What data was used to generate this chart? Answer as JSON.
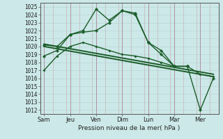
{
  "xlabel": "Pression niveau de la mer( hPa )",
  "x_labels": [
    "Sam",
    "Jeu",
    "Ven",
    "Dim",
    "Lun",
    "Mar",
    "Mer"
  ],
  "x_positions": [
    0,
    1,
    2,
    3,
    4,
    5,
    6
  ],
  "ylim": [
    1011.5,
    1025.5
  ],
  "xlim": [
    -0.15,
    6.7
  ],
  "yticks": [
    1012,
    1013,
    1014,
    1015,
    1016,
    1017,
    1018,
    1019,
    1020,
    1021,
    1022,
    1023,
    1024,
    1025
  ],
  "background_color": "#cce8e8",
  "grid_color_v": "#c8a8b0",
  "grid_color_h": "#b8d8d8",
  "line_color": "#1a5c28",
  "lines": [
    {
      "x": [
        0,
        0.5,
        1.0,
        1.5,
        2.0,
        2.5,
        3.0,
        3.5,
        4.0,
        4.5,
        5.0,
        5.5
      ],
      "y": [
        1018.8,
        1019.5,
        1021.5,
        1022.0,
        1024.7,
        1023.3,
        1024.5,
        1024.0,
        1020.5,
        1019.0,
        1017.5,
        1017.5
      ],
      "marker": "P",
      "markersize": 2.5,
      "linewidth": 1.0
    },
    {
      "x": [
        0,
        0.5,
        1.0,
        1.5,
        2.0,
        2.5,
        3.0,
        3.5,
        4.0,
        4.5,
        5.0,
        5.5,
        6.0,
        6.5
      ],
      "y": [
        1020.2,
        1020.0,
        1021.5,
        1021.8,
        1022.0,
        1023.0,
        1024.5,
        1024.2,
        1020.5,
        1019.5,
        1017.5,
        1017.5,
        1012.0,
        1016.0
      ],
      "marker": "P",
      "markersize": 2.5,
      "linewidth": 1.0
    },
    {
      "x": [
        0,
        6.5
      ],
      "y": [
        1020.0,
        1016.2
      ],
      "marker": null,
      "markersize": 0,
      "linewidth": 1.4
    },
    {
      "x": [
        0,
        6.5
      ],
      "y": [
        1020.3,
        1016.5
      ],
      "marker": null,
      "markersize": 0,
      "linewidth": 1.4
    },
    {
      "x": [
        0,
        0.5,
        1.0,
        1.5,
        2.0,
        2.5,
        3.0,
        3.5,
        4.0,
        4.5,
        5.0,
        5.5,
        6.0,
        6.5
      ],
      "y": [
        1017.0,
        1018.8,
        1020.0,
        1020.5,
        1020.0,
        1019.5,
        1019.0,
        1018.8,
        1018.5,
        1018.0,
        1017.5,
        1017.5,
        1016.5,
        1016.2
      ],
      "marker": "P",
      "markersize": 2.0,
      "linewidth": 1.0
    }
  ]
}
